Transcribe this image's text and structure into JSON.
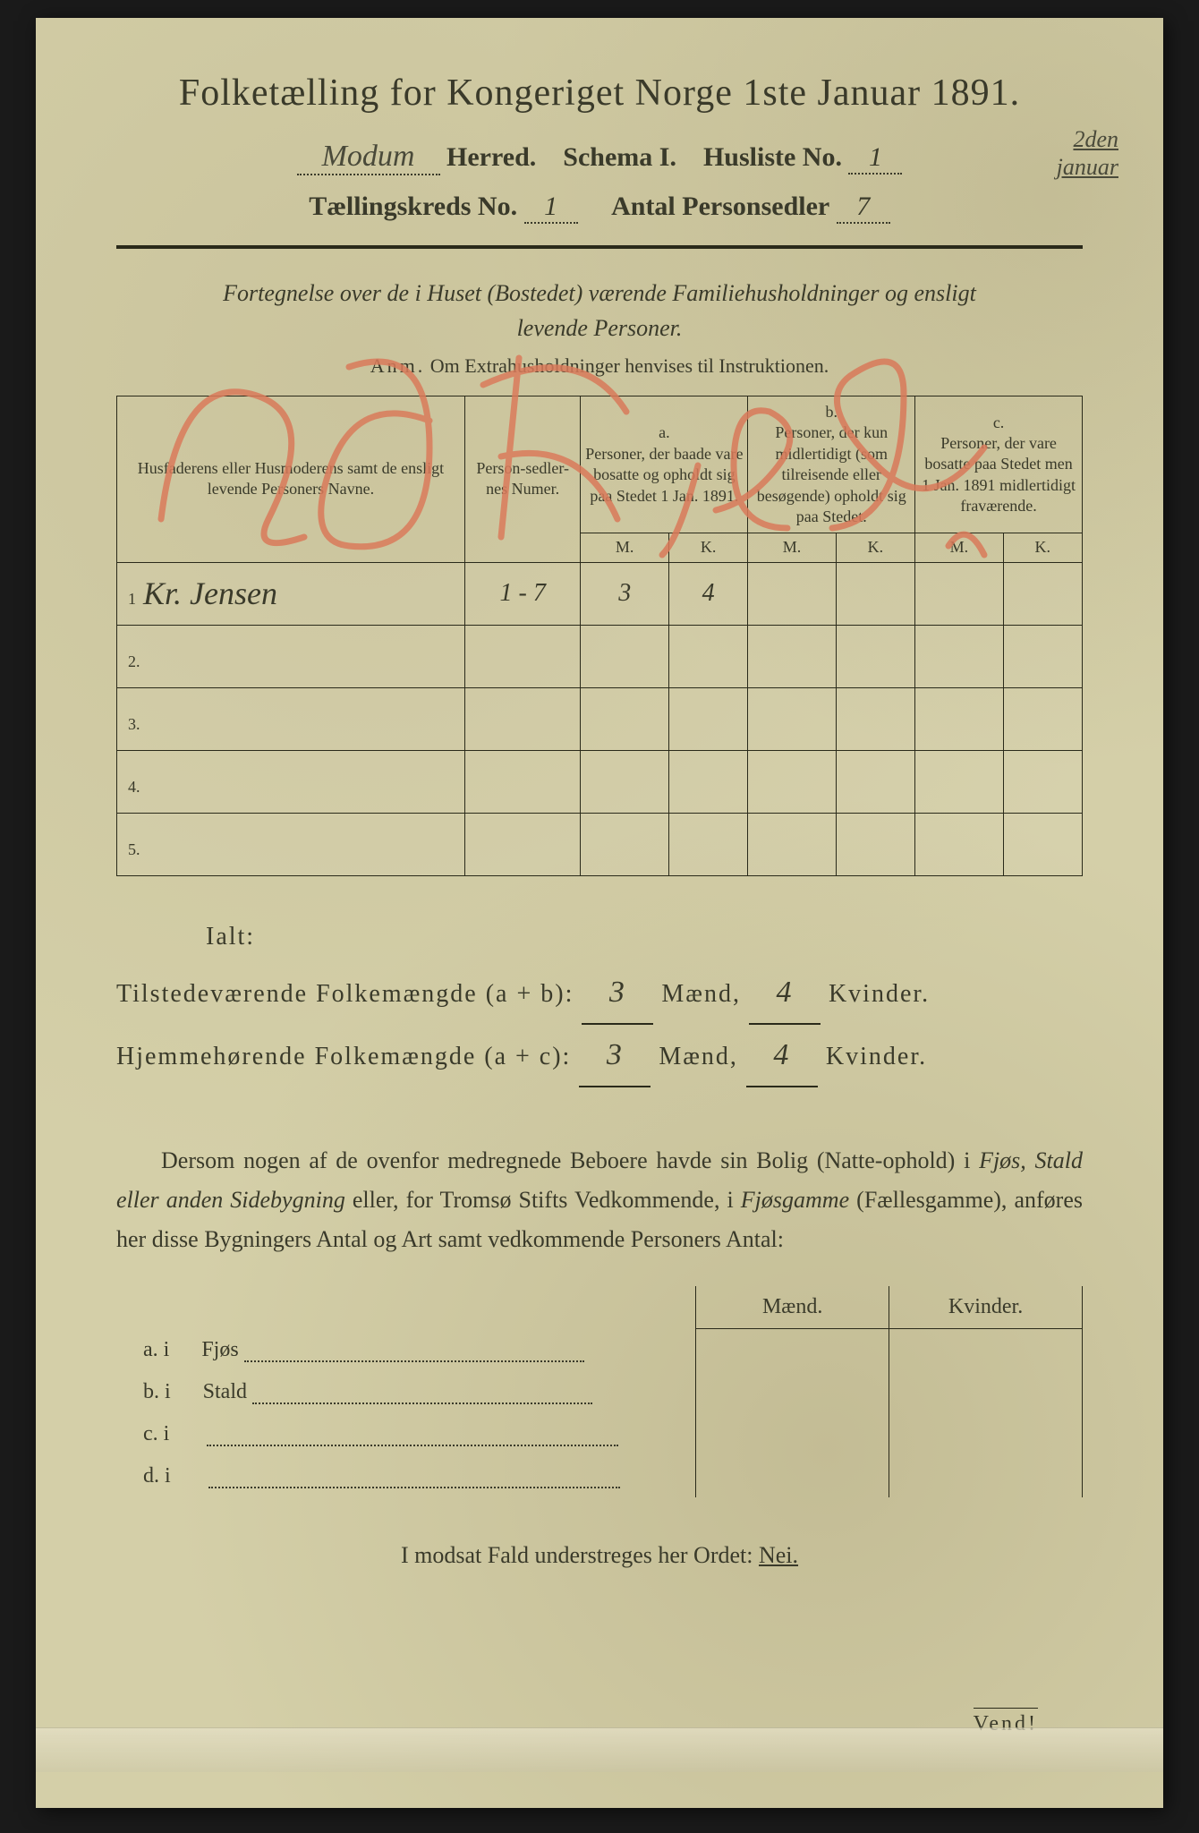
{
  "colors": {
    "paper_bg": "#d4cfa8",
    "ink": "#3a3a2a",
    "red_mark": "#d97a5a",
    "hand_ink": "#4a4a3a"
  },
  "header": {
    "title": "Folketælling for Kongeriget Norge 1ste Januar 1891.",
    "herred_value": "Modum",
    "herred_label": "Herred.",
    "schema_label": "Schema I.",
    "husliste_label": "Husliste No.",
    "husliste_no": "1",
    "kreds_label": "Tællingskreds No.",
    "kreds_no": "1",
    "personsedler_label": "Antal Personsedler",
    "personsedler": "7",
    "margin_note_line1": "2den",
    "margin_note_line2": "januar"
  },
  "section1": {
    "heading_line1": "Fortegnelse over de i Huset (Bostedet) værende Familiehusholdninger og ensligt",
    "heading_line2": "levende Personer.",
    "anm_label": "Anm.",
    "anm_text": "Om Extrahusholdninger henvises til Instruktionen."
  },
  "table": {
    "col_name": "Husfaderens eller Husmoderens samt de ensligt levende Personers Navne.",
    "col_num": "Person-sedler-nes Numer.",
    "col_a_label": "a.",
    "col_a": "Personer, der baade vare bosatte og opholdt sig paa Stedet 1 Jan. 1891.",
    "col_b_label": "b.",
    "col_b": "Personer, der kun midlertidigt (som tilreisende eller besøgende) opholdt sig paa Stedet.",
    "col_c_label": "c.",
    "col_c": "Personer, der vare bosatte paa Stedet men 1 Jan. 1891 midlertidigt fraværende.",
    "m": "M.",
    "k": "K.",
    "rows": [
      {
        "n": "1",
        "name": "Kr. Jensen",
        "num": "1 - 7",
        "a_m": "3",
        "a_k": "4",
        "b_m": "",
        "b_k": "",
        "c_m": "",
        "c_k": ""
      },
      {
        "n": "2.",
        "name": "",
        "num": "",
        "a_m": "",
        "a_k": "",
        "b_m": "",
        "b_k": "",
        "c_m": "",
        "c_k": ""
      },
      {
        "n": "3.",
        "name": "",
        "num": "",
        "a_m": "",
        "a_k": "",
        "b_m": "",
        "b_k": "",
        "c_m": "",
        "c_k": ""
      },
      {
        "n": "4.",
        "name": "",
        "num": "",
        "a_m": "",
        "a_k": "",
        "b_m": "",
        "b_k": "",
        "c_m": "",
        "c_k": ""
      },
      {
        "n": "5.",
        "name": "",
        "num": "",
        "a_m": "",
        "a_k": "",
        "b_m": "",
        "b_k": "",
        "c_m": "",
        "c_k": ""
      }
    ]
  },
  "summary": {
    "ialt": "Ialt:",
    "line1_label": "Tilstedeværende Folkemængde (a + b):",
    "line1_m": "3",
    "line1_k": "4",
    "line2_label": "Hjemmehørende Folkemængde (a + c):",
    "line2_m": "3",
    "line2_k": "4",
    "maend": "Mænd,",
    "kvinder": "Kvinder."
  },
  "para": {
    "text_1": "Dersom nogen af de ovenfor medregnede Beboere havde sin Bolig (Natte-ophold) i ",
    "ital_1": "Fjøs, Stald eller anden Sidebygning",
    "text_2": " eller, for Tromsø Stifts Vedkommende, i ",
    "ital_2": "Fjøsgamme",
    "text_3": " (Fællesgamme), anføres her disse Bygningers Antal og Art samt vedkommende Personers Antal:"
  },
  "bottom_table": {
    "maend": "Mænd.",
    "kvinder": "Kvinder.",
    "rows": [
      {
        "label": "a.  i",
        "item": "Fjøs"
      },
      {
        "label": "b.  i",
        "item": "Stald"
      },
      {
        "label": "c.  i",
        "item": ""
      },
      {
        "label": "d.  i",
        "item": ""
      }
    ]
  },
  "nei_line": {
    "text": "I modsat Fald understreges her Ordet: ",
    "nei": "Nei."
  },
  "vend": "Vend!",
  "red_overlay": "26 Kreds"
}
